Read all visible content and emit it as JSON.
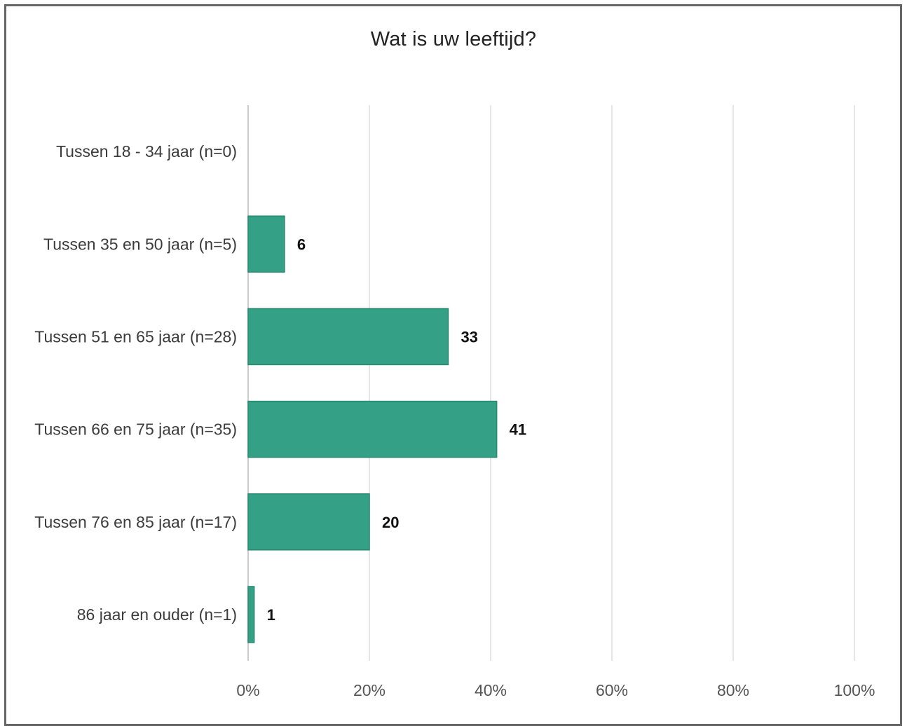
{
  "chart_data": {
    "type": "bar",
    "orientation": "horizontal",
    "title": "Wat is uw leeftijd?",
    "xlabel": "",
    "ylabel": "",
    "categories": [
      "Tussen 18 - 34 jaar (n=0)",
      "Tussen 35 en 50 jaar (n=5)",
      "Tussen 51 en 65 jaar (n=28)",
      "Tussen 66 en 75 jaar (n=35)",
      "Tussen 76 en 85 jaar (n=17)",
      "86 jaar en ouder (n=1)"
    ],
    "values": [
      0,
      6,
      33,
      41,
      20,
      1
    ],
    "data_labels": [
      "",
      "6",
      "33",
      "41",
      "20",
      "1"
    ],
    "xlim": [
      0,
      100
    ],
    "x_ticks": [
      0,
      20,
      40,
      60,
      80,
      100
    ],
    "x_tick_labels": [
      "0%",
      "20%",
      "40%",
      "60%",
      "80%",
      "100%"
    ],
    "grid": true,
    "legend": "none",
    "colors": {
      "bar": "#34a085",
      "bar_border": "#2a8a70",
      "grid": "#e6e6e6",
      "axis": "#cccccc"
    }
  }
}
